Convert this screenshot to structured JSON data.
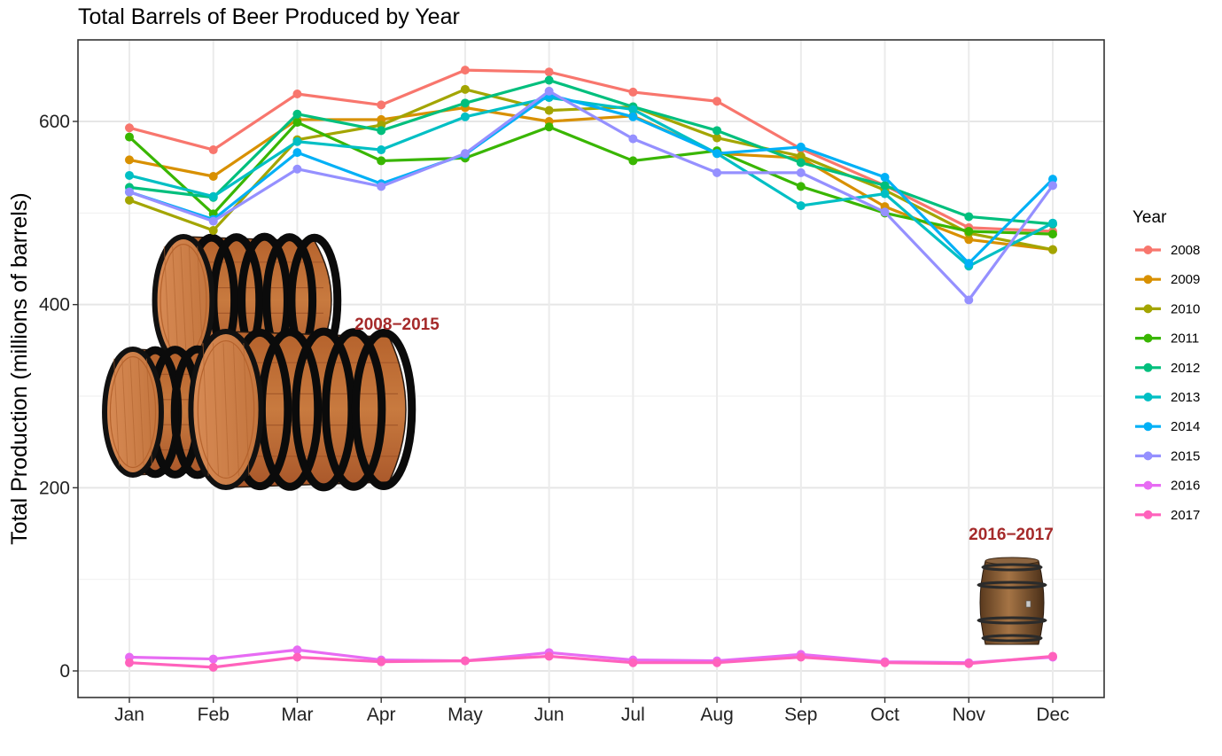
{
  "chart_data": {
    "type": "line",
    "title": "Total Barrels of Beer Produced by Year",
    "xlabel": "",
    "ylabel": "Total Production (millions of barrels)",
    "categories": [
      "Jan",
      "Feb",
      "Mar",
      "Apr",
      "May",
      "Jun",
      "Jul",
      "Aug",
      "Sep",
      "Oct",
      "Nov",
      "Dec"
    ],
    "ylim": [
      -30,
      690
    ],
    "yticks": [
      0,
      200,
      400,
      600
    ],
    "grid": true,
    "legend": {
      "title": "Year",
      "position": "right"
    },
    "series": [
      {
        "name": "2008",
        "color": "#F8766D",
        "values": [
          593,
          569,
          630,
          618,
          656,
          654,
          632,
          622,
          570,
          530,
          484,
          480
        ]
      },
      {
        "name": "2009",
        "color": "#D89000",
        "values": [
          558,
          540,
          602,
          602,
          615,
          600,
          606,
          565,
          560,
          507,
          471,
          460
        ]
      },
      {
        "name": "2010",
        "color": "#A3A500",
        "values": [
          514,
          481,
          580,
          596,
          635,
          612,
          616,
          582,
          562,
          525,
          478,
          460
        ]
      },
      {
        "name": "2011",
        "color": "#39B600",
        "values": [
          583,
          499,
          599,
          557,
          560,
          594,
          557,
          568,
          529,
          500,
          480,
          477
        ]
      },
      {
        "name": "2012",
        "color": "#00BF7D",
        "values": [
          528,
          517,
          608,
          590,
          620,
          645,
          616,
          590,
          555,
          530,
          496,
          488
        ]
      },
      {
        "name": "2013",
        "color": "#00BFC4",
        "values": [
          541,
          518,
          578,
          569,
          605,
          626,
          613,
          565,
          508,
          521,
          442,
          489
        ]
      },
      {
        "name": "2014",
        "color": "#00B0F6",
        "values": [
          523,
          493,
          566,
          532,
          564,
          629,
          605,
          565,
          572,
          539,
          445,
          537
        ]
      },
      {
        "name": "2015",
        "color": "#9590FF",
        "values": [
          523,
          491,
          548,
          529,
          565,
          633,
          581,
          544,
          544,
          501,
          405,
          530
        ]
      },
      {
        "name": "2016",
        "color": "#E76BF3",
        "values": [
          15,
          13,
          23,
          12,
          11,
          20,
          12,
          11,
          18,
          10,
          9,
          15
        ]
      },
      {
        "name": "2017",
        "color": "#FF62BC",
        "values": [
          9,
          4,
          15,
          10,
          11,
          16,
          9,
          9,
          15,
          9,
          8,
          16
        ]
      }
    ],
    "annotations": [
      {
        "text": "2008−2015",
        "x": "Mar",
        "y": 377
      },
      {
        "text": "2016−2017",
        "x": "Nov",
        "y": 148
      }
    ]
  },
  "images": {
    "large_barrels_icon": "barrel-stack-icon",
    "small_barrel_icon": "barrel-icon"
  }
}
